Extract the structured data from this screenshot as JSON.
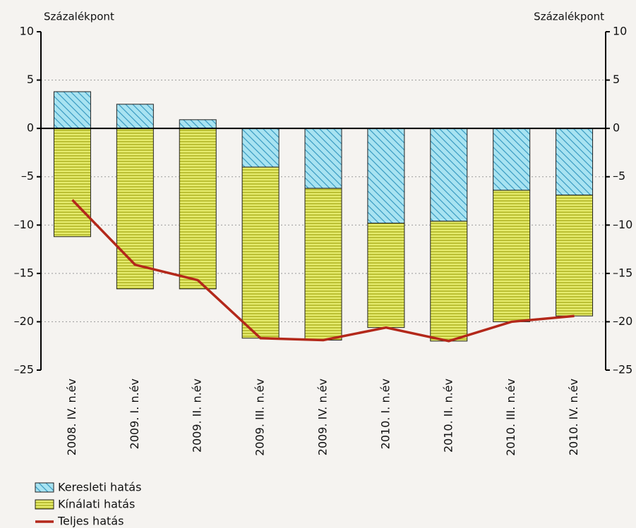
{
  "chart_data": {
    "type": "bar",
    "y_label": "Százalékpont",
    "y2_label": "Százalékpont",
    "categories": [
      "2008. IV. n.év",
      "2009. I. n.év",
      "2009. II. n.év",
      "2009. III. n.év",
      "2009. IV. n.év",
      "2010. I. n.év",
      "2010. II. n.év",
      "2010. III. n.év",
      "2010. IV. n.év"
    ],
    "series": [
      {
        "name": "Keresleti hatás",
        "color": "#a8e3f1",
        "pattern": "diagonal",
        "values": [
          3.8,
          2.5,
          0.9,
          -4.0,
          -6.2,
          -9.8,
          -9.6,
          -6.4,
          -6.9
        ]
      },
      {
        "name": "Kínálati hatás",
        "color": "#e6ec6e",
        "pattern": "horizontal",
        "values": [
          -11.2,
          -16.6,
          -16.6,
          -17.7,
          -15.7,
          -10.8,
          -12.4,
          -13.6,
          -12.5
        ]
      },
      {
        "name": "Teljes hatás",
        "type": "line",
        "color": "#b3281a",
        "values": [
          -7.4,
          -14.1,
          -15.7,
          -21.7,
          -21.9,
          -20.6,
          -22.0,
          -20.0,
          -19.4
        ]
      }
    ],
    "ylim": [
      -25,
      10
    ],
    "yticks": [
      10,
      5,
      0,
      {
        "value": -5,
        "label": "–5"
      },
      {
        "value": -10,
        "label": "–10"
      },
      {
        "value": -15,
        "label": "–15"
      },
      {
        "value": -20,
        "label": "–20"
      },
      {
        "value": -25,
        "label": "–25"
      }
    ],
    "grid": true
  }
}
